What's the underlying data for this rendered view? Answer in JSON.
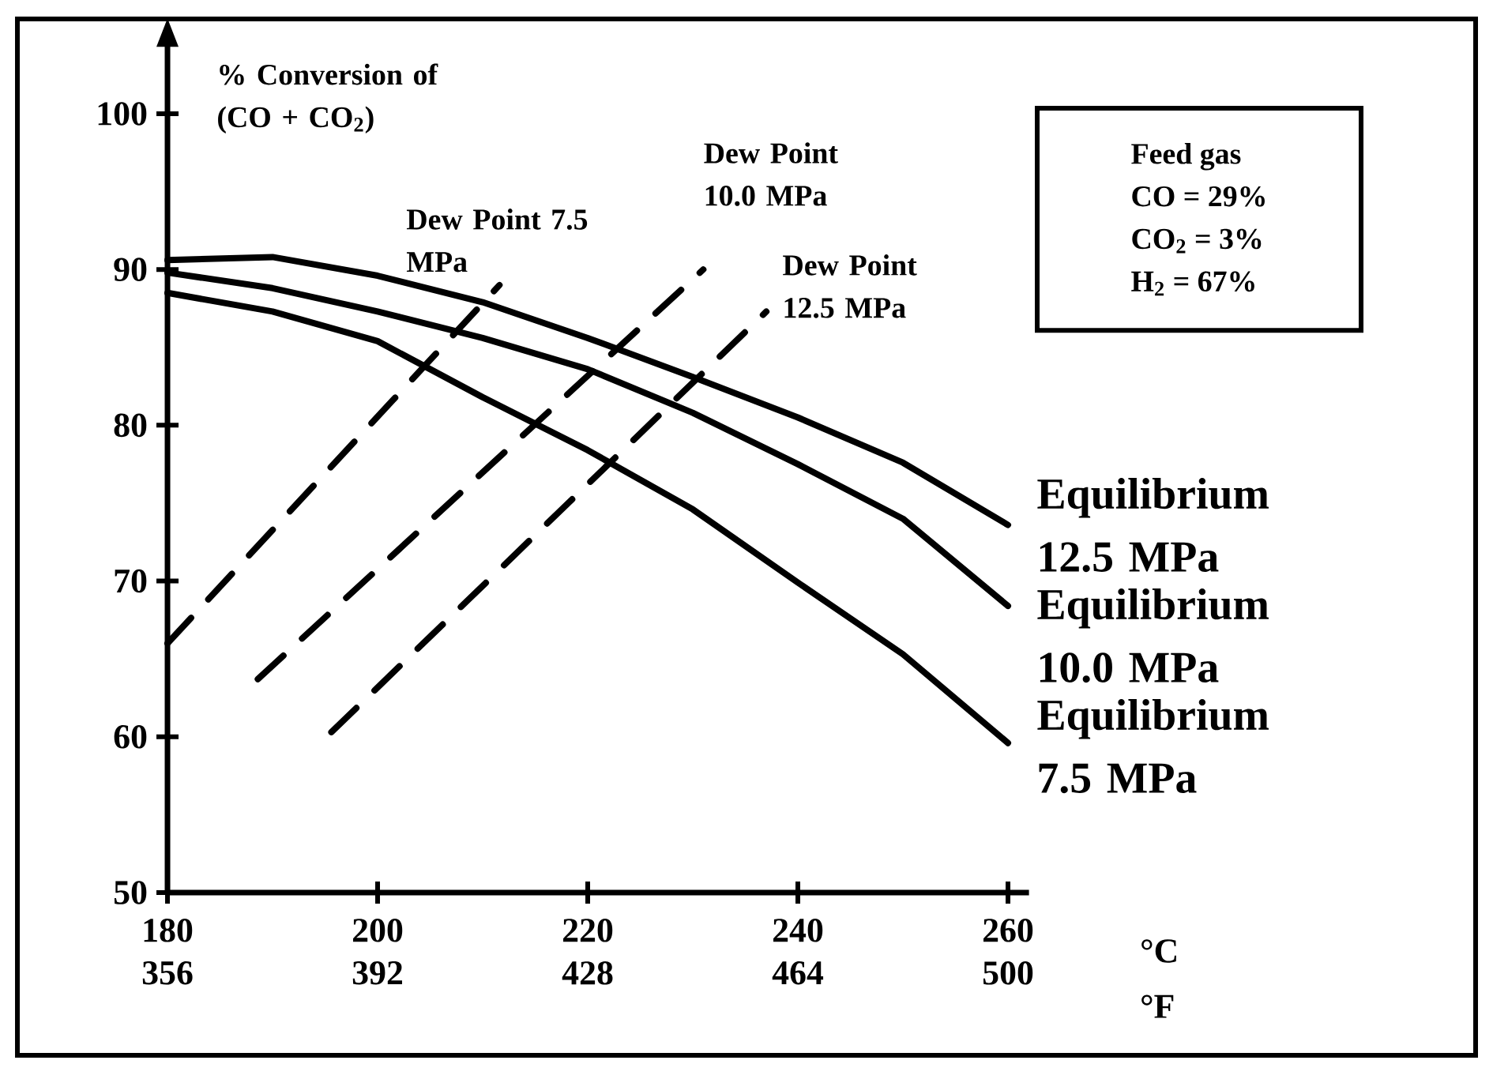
{
  "chart_data": {
    "type": "line",
    "ylabel": "% Conversion of (CO + CO$_{2}$)",
    "xlabel": "°C",
    "x2label": "°F",
    "x": [
      180,
      190,
      200,
      210,
      220,
      230,
      240,
      250,
      260
    ],
    "xlim": [
      180,
      262
    ],
    "xticks": [
      180,
      200,
      220,
      240,
      260
    ],
    "x2lim": [
      356,
      503.6
    ],
    "x2ticks": [
      356,
      392,
      428,
      464,
      500
    ],
    "ylim": [
      50,
      104.5
    ],
    "yticks": [
      50,
      60,
      70,
      80,
      90,
      100
    ],
    "series": [
      {
        "name": "Equilibrium 12.5 MPa",
        "color": "#000000",
        "line_style": "solid",
        "values": [
          90.6,
          90.8,
          89.6,
          87.9,
          85.6,
          83.1,
          80.5,
          77.6,
          73.6
        ]
      },
      {
        "name": "Equilibrium 10.0 MPa",
        "color": "#000000",
        "line_style": "solid",
        "values": [
          89.8,
          88.8,
          87.3,
          85.6,
          83.6,
          80.8,
          77.5,
          74.0,
          68.4
        ]
      },
      {
        "name": "Equilibrium 7.5 MPa",
        "color": "#000000",
        "line_style": "solid",
        "values": [
          88.5,
          87.3,
          85.4,
          81.8,
          78.4,
          74.6,
          69.9,
          65.3,
          59.6
        ]
      },
      {
        "name": "Dew Point 7.5 MPa",
        "color": "#000000",
        "line_style": "dashed",
        "x": [
          180,
          211.6
        ],
        "values": [
          66.0,
          89.0
        ]
      },
      {
        "name": "Dew Point 10.0 MPa",
        "color": "#000000",
        "line_style": "dashed",
        "x": [
          188.6,
          231
        ],
        "values": [
          63.7,
          90.0
        ]
      },
      {
        "name": "Dew Point 12.5 MPa",
        "color": "#000000",
        "line_style": "dashed",
        "x": [
          195.6,
          237
        ],
        "values": [
          60.3,
          87.3
        ]
      }
    ],
    "annotations": [
      "Feed gas",
      "CO = 29%",
      "CO$_{2}$ = 3%",
      "H$_{2}$ = 67%"
    ]
  }
}
